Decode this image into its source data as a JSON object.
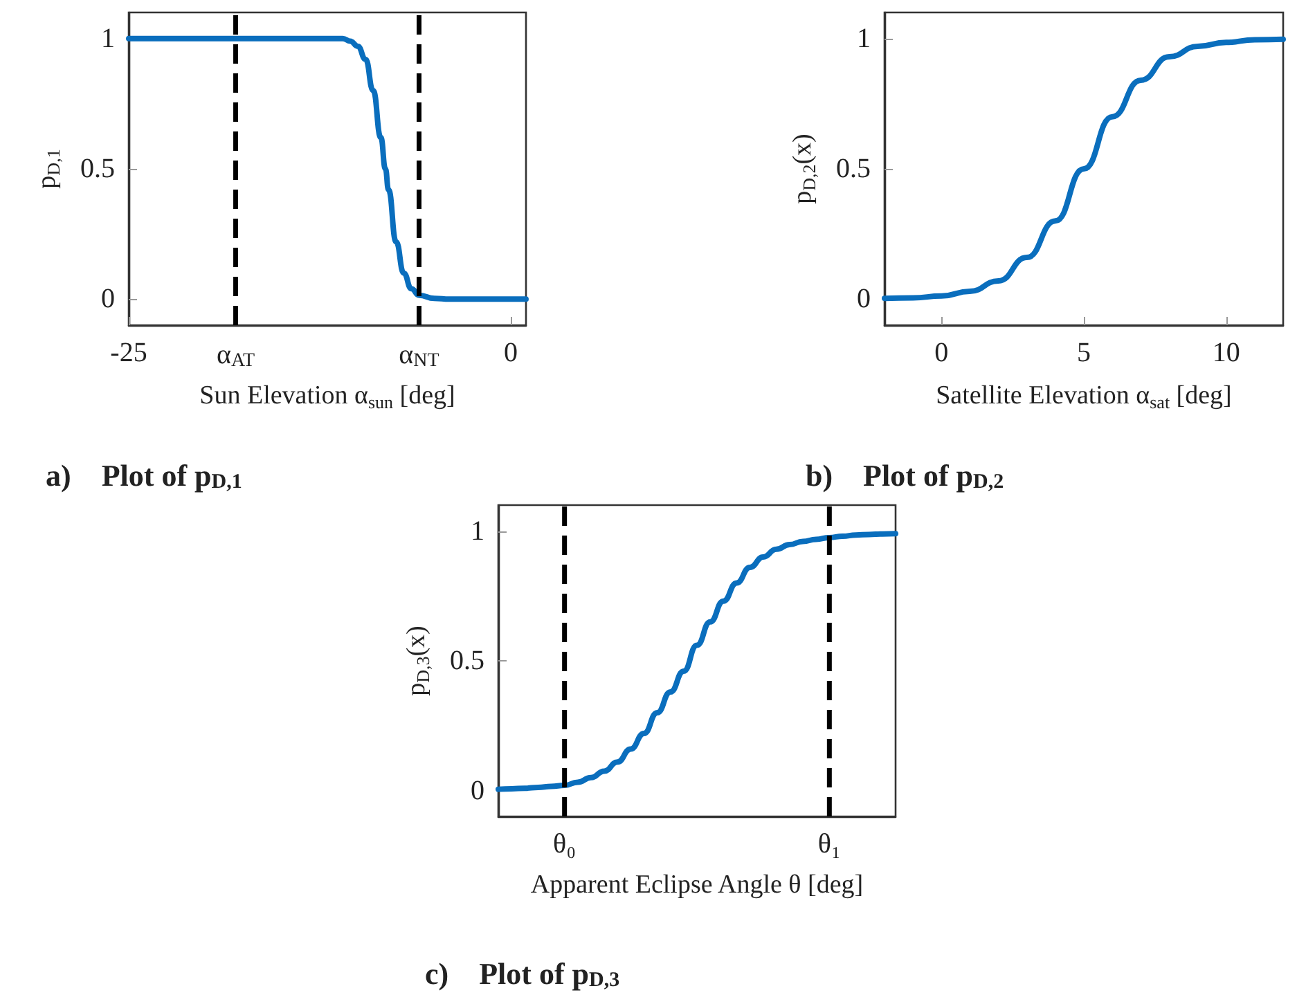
{
  "chart_data": [
    {
      "type": "line",
      "title": "a)    Plot of p$_{D,1}$",
      "xlabel": "Sun Elevation α$_{sun}$ [deg]",
      "ylabel": "p$_{D,1}$",
      "x": [
        -25,
        -20,
        -15,
        -12,
        -11,
        -10.5,
        -10,
        -9.5,
        -9,
        -8.5,
        -8.2,
        -8,
        -7.5,
        -7,
        -6.5,
        -6,
        -5,
        -4,
        -2,
        0,
        1
      ],
      "values": [
        1,
        1,
        1,
        1,
        1,
        0.99,
        0.97,
        0.92,
        0.8,
        0.62,
        0.5,
        0.42,
        0.22,
        0.1,
        0.04,
        0.015,
        0.003,
        0,
        0,
        0,
        0
      ],
      "color": "#0a6ebd",
      "marker": "none",
      "xlim": [
        -25,
        1
      ],
      "ylim": [
        -0.1,
        1.1
      ],
      "xticks": [
        -25,
        {
          "value": -18,
          "label": "α$_{AT}$"
        },
        {
          "value": -6,
          "label": "α$_{NT}$"
        },
        0
      ],
      "yticks": [
        0,
        0.5,
        1
      ],
      "ref_lines": [
        {
          "axis": "x",
          "value": -18,
          "color": "#000000",
          "line_style": "dashed"
        },
        {
          "axis": "x",
          "value": -6,
          "color": "#000000",
          "line_style": "dashed"
        }
      ]
    },
    {
      "type": "line",
      "title": "b)    Plot of p$_{D,2}$",
      "xlabel": "Satellite Elevation α$_{sat}$ [deg]",
      "ylabel": "p$_{D,2}$(x)",
      "x": [
        -2,
        -1,
        0,
        1,
        2,
        3,
        4,
        5,
        6,
        7,
        8,
        9,
        10,
        11,
        12
      ],
      "values": [
        0.003,
        0.005,
        0.012,
        0.03,
        0.07,
        0.16,
        0.3,
        0.5,
        0.7,
        0.84,
        0.93,
        0.97,
        0.985,
        0.995,
        0.997
      ],
      "color": "#0a6ebd",
      "marker": "none",
      "xlim": [
        -2,
        12
      ],
      "ylim": [
        -0.1,
        1.1
      ],
      "xticks": [
        0,
        5,
        10
      ],
      "yticks": [
        0,
        0.5,
        1
      ]
    },
    {
      "type": "line",
      "title": "c)    Plot of p$_{D,3}$",
      "xlabel": "Apparent Eclipse Angle θ [deg]",
      "ylabel": "p$_{D,3}$(x)",
      "categories": [
        null,
        null,
        null,
        null,
        null,
        "θ₀",
        null,
        null,
        null,
        null,
        null,
        null,
        null,
        null,
        null,
        null,
        null,
        null,
        null,
        null,
        null,
        null,
        null,
        null,
        null,
        "θ₁",
        null,
        null,
        null,
        null,
        null
      ],
      "values": [
        0.005,
        0.007,
        0.009,
        0.012,
        0.016,
        0.02,
        0.032,
        0.05,
        0.075,
        0.11,
        0.16,
        0.22,
        0.3,
        0.38,
        0.46,
        0.56,
        0.65,
        0.73,
        0.8,
        0.86,
        0.9,
        0.93,
        0.948,
        0.96,
        0.968,
        0.975,
        0.98,
        0.985,
        0.987,
        0.989,
        0.99
      ],
      "color": "#0a6ebd",
      "marker": "none",
      "ylim": [
        -0.1,
        1.1
      ],
      "yticks": [
        0,
        0.5,
        1
      ],
      "ref_lines": [
        {
          "axis": "x",
          "value": "θ₀",
          "color": "#000000",
          "line_style": "dashed"
        },
        {
          "axis": "x",
          "value": "θ₁",
          "color": "#000000",
          "line_style": "dashed"
        }
      ]
    }
  ]
}
